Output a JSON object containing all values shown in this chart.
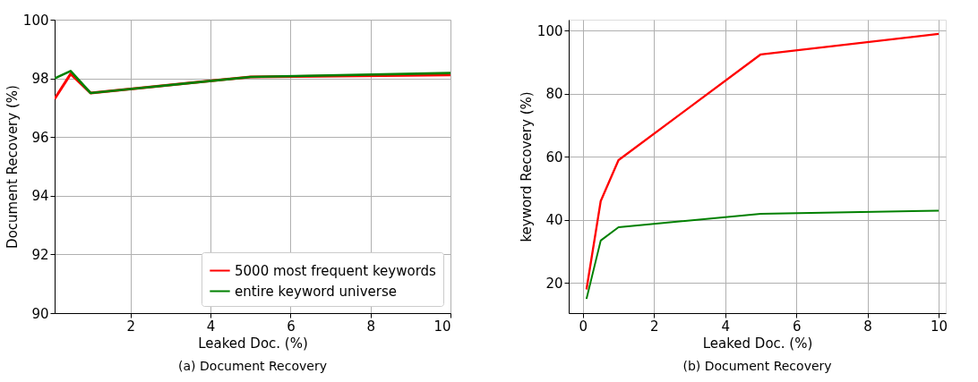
{
  "chart_data": [
    {
      "type": "line",
      "title": "(a) Document Recovery",
      "xlabel": "Leaked Doc. (%)",
      "ylabel": "Document Recovery (%)",
      "x": [
        0.1,
        0.5,
        1,
        5,
        10
      ],
      "series": [
        {
          "name": "5000 most frequent keywords",
          "color": "#ff0000",
          "values": [
            97.3,
            98.15,
            97.5,
            98.05,
            98.12
          ]
        },
        {
          "name": "entire keyword universe",
          "color": "#008000",
          "values": [
            98.0,
            98.25,
            97.5,
            98.05,
            98.18
          ]
        }
      ],
      "xlim": [
        0.1,
        10
      ],
      "ylim": [
        90,
        100
      ],
      "xticks": [
        2,
        4,
        6,
        8,
        10
      ],
      "yticks": [
        90,
        92,
        94,
        96,
        98,
        100
      ],
      "grid": true,
      "legend": "bottom right"
    },
    {
      "type": "line",
      "title": "(b) Document Recovery",
      "xlabel": "Leaked Doc. (%)",
      "ylabel": "keyword Recovery (%)",
      "x": [
        0.1,
        0.5,
        1,
        5,
        10
      ],
      "series": [
        {
          "color": "#ff0000",
          "values": [
            18,
            46,
            59,
            92.5,
            99
          ]
        },
        {
          "color": "#008000",
          "values": [
            15,
            33.5,
            37.7,
            42,
            43
          ]
        }
      ],
      "xlim": [
        -0.4,
        10.2
      ],
      "ylim": [
        10.5,
        103.5
      ],
      "xticks": [
        0,
        2,
        4,
        6,
        8,
        10
      ],
      "yticks": [
        20,
        40,
        60,
        80,
        100
      ],
      "grid": true
    }
  ]
}
